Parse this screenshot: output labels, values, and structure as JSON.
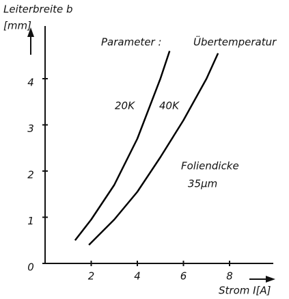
{
  "chart_data": {
    "type": "line",
    "y_label_line1": "Leiterbreite b",
    "y_label_line2": "[mm]",
    "x_label": "Strom I[A]",
    "annotations": {
      "parameter": "Parameter :",
      "parameter_value": "Übertemperatur",
      "foil": "Foliendicke",
      "thickness": "35µm"
    },
    "series": [
      {
        "name": "20K",
        "color": "#000000",
        "x": [
          1.3,
          2,
          3,
          4,
          5,
          5.4
        ],
        "values": [
          0.5,
          0.95,
          1.7,
          2.7,
          4.0,
          4.6
        ]
      },
      {
        "name": "40K",
        "color": "#000000",
        "x": [
          1.9,
          2,
          3,
          4,
          5,
          6,
          7,
          7.5
        ],
        "values": [
          0.4,
          0.45,
          0.95,
          1.55,
          2.3,
          3.1,
          4.0,
          4.55
        ]
      }
    ],
    "xlim": [
      0,
      10
    ],
    "ylim": [
      0,
      5.1
    ],
    "xticks": [
      2,
      4,
      6,
      8
    ],
    "yticks": [
      0,
      1,
      2,
      3,
      4
    ]
  }
}
